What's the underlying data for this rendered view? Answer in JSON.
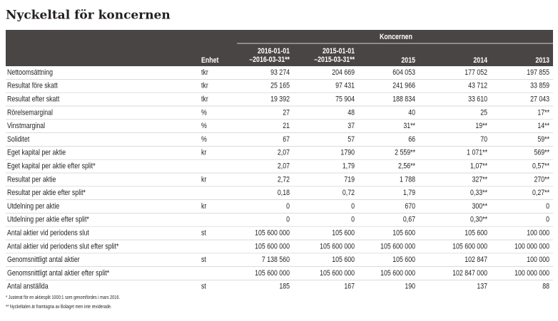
{
  "title": "Nyckeltal för koncernen",
  "table": {
    "group_header": "Koncernen",
    "header": [
      "Enhet",
      [
        "2016-01-01",
        "–2016-03-31**"
      ],
      [
        "2015-01-01",
        "–2015-03-31**"
      ],
      "2015",
      "2014",
      "2013"
    ],
    "rows": [
      [
        "Nettoomsättning",
        "tkr",
        "93 274",
        "204 669",
        "604 053",
        "177 052",
        "197 855"
      ],
      [
        "Resultat före skatt",
        "tkr",
        "25 165",
        "97 431",
        "241 966",
        "43 712",
        "33 859"
      ],
      [
        "Resultat efter skatt",
        "tkr",
        "19 392",
        "75 904",
        "188 834",
        "33 610",
        "27 043"
      ],
      [
        "Rörelsemarginal",
        "%",
        "27",
        "48",
        "40",
        "25",
        "17**"
      ],
      [
        "Vinstmarginal",
        "%",
        "21",
        "37",
        "31**",
        "19**",
        "14**"
      ],
      [
        "Soliditet",
        "%",
        "67",
        "57",
        "66",
        "70",
        "59**"
      ],
      [
        "Eget kapital per aktie",
        "kr",
        "2,07",
        "1790",
        "2 559**",
        "1 071**",
        "569**"
      ],
      [
        "Eget kapital per aktie efter split*",
        null,
        "2,07",
        "1,79",
        "2,56**",
        "1,07**",
        "0,57**"
      ],
      [
        "Resultat per aktie",
        "kr",
        "2,72",
        "719",
        "1 788",
        "327**",
        "270**"
      ],
      [
        "Resultat per aktie efter split*",
        null,
        "0,18",
        "0,72",
        "1,79",
        "0,33**",
        "0,27**"
      ],
      [
        "Utdelning per aktie",
        "kr",
        "0",
        "0",
        "670",
        "300**",
        "0"
      ],
      [
        "Utdelning per aktie efter split*",
        null,
        "0",
        "0",
        "0,67",
        "0,30**",
        "0"
      ],
      [
        "Antal aktier vid periodens slut",
        "st",
        "105 600 000",
        "105 600",
        "105 600",
        "105 600",
        "100 000"
      ],
      [
        "Antal aktier vid periodens slut efter split*",
        null,
        "105 600 000",
        "105 600 000",
        "105 600 000",
        "105 600 000",
        "100 000 000"
      ],
      [
        "Genomsnittligt antal aktier",
        "st",
        "7 138 560",
        "105 600",
        "105 600",
        "102 847",
        "100 000"
      ],
      [
        "Genomsnittligt antal aktier efter split*",
        null,
        "105 600 000",
        "105 600 000",
        "105 600 000",
        "102 847 000",
        "100 000 000"
      ],
      [
        "Antal anställda",
        "st",
        "185",
        "167",
        "190",
        "137",
        "88"
      ]
    ]
  },
  "footnotes": [
    "* Justerat för en aktiesplit 1000:1 som genomfördes i mars 2016.",
    "** Nyckeltalen är framtagna av Bolaget men inte reviderade."
  ]
}
